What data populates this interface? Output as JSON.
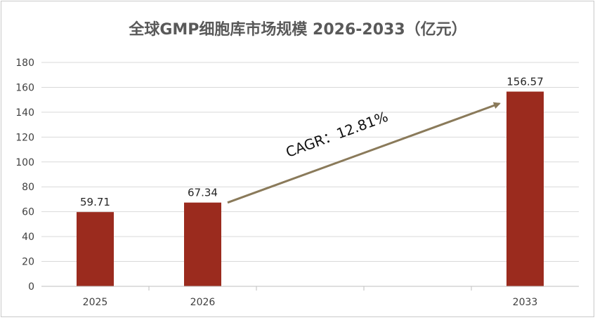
{
  "chart_data": {
    "type": "bar",
    "title": "全球GMP细胞库市场规模 2026-2033（亿元）",
    "categories": [
      "2025",
      "2026",
      "",
      "",
      "2033"
    ],
    "values": [
      59.71,
      67.34,
      null,
      null,
      156.57
    ],
    "data_labels": [
      "59.71",
      "67.34",
      "",
      "",
      "156.57"
    ],
    "ylim": [
      0,
      180
    ],
    "yticks": [
      0,
      20,
      40,
      60,
      80,
      100,
      120,
      140,
      160,
      180
    ],
    "grid": true,
    "legend": "none",
    "annotation": {
      "text": "CAGR：12.81%",
      "from_category": 1,
      "to_category": 4
    },
    "colors": {
      "bar": "#9b2b1e",
      "arrow": "#8a7a5a",
      "grid": "#d9d9d9"
    }
  }
}
